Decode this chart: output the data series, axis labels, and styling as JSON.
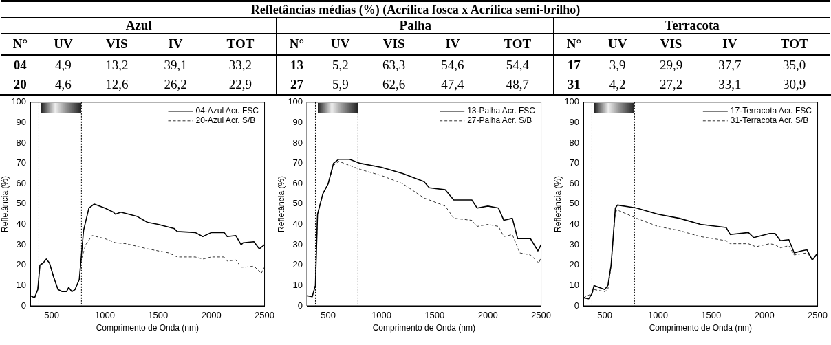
{
  "chart_data": [
    {
      "type": "other",
      "title": "Refletâncias médias (%) (Acrílica fosca x Acrílica semi-brilho)",
      "annotations": [
        "Azul",
        "Palha",
        "Terracota",
        "N°",
        "UV",
        "VIS",
        "IV",
        "TOT",
        "N°",
        "UV",
        "VIS",
        "IV",
        "TOT",
        "N°",
        "UV",
        "VIS",
        "IV",
        "TOT",
        "04",
        "4,9",
        "13,2",
        "39,1",
        "33,2",
        "13",
        "5,2",
        "63,3",
        "54,6",
        "54,4",
        "17",
        "3,9",
        "29,9",
        "37,7",
        "35,0",
        "20",
        "4,6",
        "12,6",
        "26,2",
        "22,9",
        "27",
        "5,9",
        "62,6",
        "47,4",
        "48,7",
        "31",
        "4,2",
        "27,2",
        "33,1",
        "30,9"
      ]
    },
    {
      "type": "line",
      "xlabel": "Comprimento de Onda (nm)",
      "ylabel": "Refletância (%)",
      "xlim": [
        300,
        2500
      ],
      "xticks": [
        500,
        1000,
        1500,
        2000,
        2500
      ],
      "ylim": [
        0,
        100
      ],
      "yticks": [
        0,
        10,
        20,
        30,
        40,
        50,
        60,
        70,
        80,
        90,
        100
      ],
      "grid": false,
      "legend": "top right",
      "marker": "none",
      "ref_lines": [
        {
          "axis": "x",
          "value": 380,
          "color": "#000000",
          "line_style": "dotted"
        },
        {
          "axis": "x",
          "value": 780,
          "color": "#000000",
          "line_style": "dotted"
        }
      ],
      "series": [
        {
          "name": "04-Azul Acr. FSC",
          "color": "#000000",
          "line_style": "solid",
          "x": [
            300,
            340,
            370,
            390,
            420,
            450,
            480,
            520,
            560,
            600,
            640,
            660,
            690,
            720,
            760,
            780,
            800,
            850,
            900,
            1000,
            1080,
            1100,
            1150,
            1300,
            1400,
            1500,
            1650,
            1680,
            1850,
            1920,
            2000,
            2120,
            2150,
            2230,
            2280,
            2300,
            2400,
            2450,
            2500
          ],
          "values": [
            5,
            4,
            8,
            20,
            21,
            23,
            21,
            14,
            8,
            7,
            7,
            9,
            7,
            8,
            13,
            25,
            37,
            48,
            50,
            48,
            46,
            45,
            46,
            44,
            41,
            40,
            38,
            36.5,
            36,
            34,
            36,
            36,
            34,
            34.5,
            30,
            31,
            31.5,
            28,
            30
          ]
        },
        {
          "name": "20-Azul Acr. S/B",
          "color": "#333333",
          "line_style": "dashed",
          "x": [
            300,
            340,
            370,
            390,
            420,
            450,
            480,
            520,
            560,
            600,
            640,
            660,
            690,
            720,
            760,
            780,
            820,
            880,
            1000,
            1100,
            1200,
            1400,
            1600,
            1680,
            1850,
            1920,
            2000,
            2120,
            2150,
            2230,
            2280,
            2320,
            2400,
            2470,
            2500
          ],
          "values": [
            5,
            4,
            8,
            20,
            21,
            23,
            21,
            14,
            8,
            7,
            7,
            9,
            7,
            8,
            13,
            23,
            30,
            34.5,
            33,
            31,
            30.5,
            28,
            26,
            24,
            24,
            23,
            24,
            24,
            22,
            22.5,
            19,
            19,
            19.5,
            16,
            19
          ]
        }
      ]
    },
    {
      "type": "line",
      "xlabel": "Comprimento de Onda (nm)",
      "ylabel": "Refletância (%)",
      "xlim": [
        300,
        2500
      ],
      "xticks": [
        500,
        1000,
        1500,
        2000,
        2500
      ],
      "ylim": [
        0,
        100
      ],
      "yticks": [
        0,
        10,
        20,
        30,
        40,
        50,
        60,
        70,
        80,
        90,
        100
      ],
      "grid": false,
      "legend": "top right",
      "marker": "none",
      "ref_lines": [
        {
          "axis": "x",
          "value": 380,
          "color": "#000000",
          "line_style": "dotted"
        },
        {
          "axis": "x",
          "value": 780,
          "color": "#000000",
          "line_style": "dotted"
        }
      ],
      "series": [
        {
          "name": "13-Palha Acr. FSC",
          "color": "#000000",
          "line_style": "solid",
          "x": [
            300,
            350,
            380,
            400,
            450,
            500,
            550,
            600,
            700,
            800,
            1000,
            1200,
            1400,
            1450,
            1600,
            1680,
            1850,
            1900,
            2000,
            2100,
            2150,
            2230,
            2280,
            2400,
            2470,
            2500
          ],
          "values": [
            5,
            4.5,
            10,
            45,
            55,
            60,
            70,
            72,
            72,
            70,
            68,
            65,
            61,
            58,
            57,
            52,
            52,
            48,
            49,
            48,
            42,
            43,
            33,
            33,
            27,
            30
          ]
        },
        {
          "name": "27-Palha Acr. S/B",
          "color": "#333333",
          "line_style": "dashed",
          "x": [
            300,
            350,
            380,
            400,
            450,
            500,
            550,
            600,
            800,
            1000,
            1200,
            1400,
            1600,
            1680,
            1850,
            1900,
            2000,
            2100,
            2150,
            2230,
            2300,
            2400,
            2480,
            2500
          ],
          "values": [
            5,
            4.5,
            10,
            45,
            55,
            60,
            69,
            71,
            67,
            64,
            60,
            53,
            49,
            43,
            42,
            39,
            40,
            39,
            34,
            35,
            26,
            25,
            21,
            24
          ]
        }
      ]
    },
    {
      "type": "line",
      "xlabel": "Comprimento de Onda (nm)",
      "ylabel": "Refletância (%)",
      "xlim": [
        300,
        2500
      ],
      "xticks": [
        500,
        1000,
        1500,
        2000,
        2500
      ],
      "ylim": [
        0,
        100
      ],
      "yticks": [
        0,
        10,
        20,
        30,
        40,
        50,
        60,
        70,
        80,
        90,
        100
      ],
      "grid": false,
      "legend": "top right",
      "marker": "none",
      "ref_lines": [
        {
          "axis": "x",
          "value": 380,
          "color": "#000000",
          "line_style": "dotted"
        },
        {
          "axis": "x",
          "value": 780,
          "color": "#000000",
          "line_style": "dotted"
        }
      ],
      "series": [
        {
          "name": "17-Terracota Acr. FSC",
          "color": "#000000",
          "line_style": "solid",
          "x": [
            300,
            350,
            380,
            400,
            500,
            530,
            560,
            600,
            620,
            800,
            1000,
            1200,
            1400,
            1640,
            1680,
            1850,
            1900,
            2050,
            2100,
            2150,
            2230,
            2280,
            2350,
            2400,
            2450,
            2500
          ],
          "values": [
            4,
            3.5,
            6,
            10,
            8,
            10,
            20,
            48,
            49.5,
            48,
            45,
            43,
            40,
            38.5,
            35,
            36,
            33.5,
            35.5,
            35.5,
            32,
            32.5,
            26,
            27,
            27.5,
            22.5,
            26
          ]
        },
        {
          "name": "31-Terracota Acr. S/B",
          "color": "#333333",
          "line_style": "dashed",
          "x": [
            300,
            380,
            400,
            500,
            530,
            560,
            600,
            620,
            800,
            1000,
            1200,
            1400,
            1640,
            1680,
            1850,
            1920,
            2050,
            2100,
            2150,
            2230,
            2280,
            2400,
            2450,
            2500
          ],
          "values": [
            4,
            6,
            8,
            7,
            8,
            20,
            46,
            47,
            43,
            39,
            37,
            34,
            32,
            30.5,
            30.5,
            29,
            30.5,
            30,
            28.5,
            29.5,
            25,
            26,
            23,
            25
          ]
        }
      ]
    }
  ]
}
